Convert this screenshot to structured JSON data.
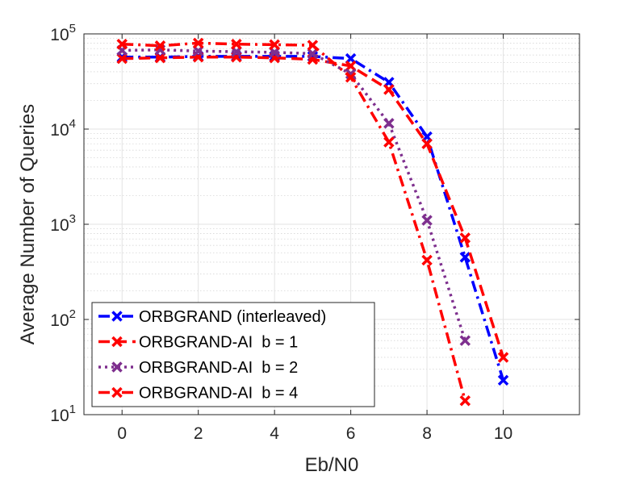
{
  "chart_data": {
    "type": "line",
    "title": "",
    "xlabel": "Eb/N0",
    "ylabel": "Average Number of Queries",
    "xlim": [
      -1,
      12
    ],
    "ylim": [
      10,
      100000
    ],
    "yscale": "log",
    "grid": true,
    "minor_grid": true,
    "legend_position": "bottom-left",
    "x_ticks": [
      "0",
      "2",
      "4",
      "6",
      "8",
      "10"
    ],
    "y_ticks": [
      {
        "base": "10",
        "exp": "1"
      },
      {
        "base": "10",
        "exp": "2"
      },
      {
        "base": "10",
        "exp": "3"
      },
      {
        "base": "10",
        "exp": "4"
      },
      {
        "base": "10",
        "exp": "5"
      }
    ],
    "series": [
      {
        "name": "ORBGRAND (interleaved)",
        "color": "#0000ff",
        "line_style": "dashdot",
        "marker": "x",
        "x": [
          0,
          1,
          2,
          3,
          4,
          5,
          6,
          7,
          8,
          9,
          10
        ],
        "y": [
          57000,
          57000,
          58000,
          58000,
          58000,
          58000,
          55000,
          31000,
          8300,
          450,
          23
        ]
      },
      {
        "name": "ORBGRAND-AI  b = 1",
        "color": "#ff0000",
        "line_style": "dashed",
        "marker": "x",
        "x": [
          0,
          1,
          2,
          3,
          4,
          5,
          6,
          7,
          8,
          9,
          10
        ],
        "y": [
          55000,
          56000,
          57000,
          57000,
          56000,
          54000,
          46000,
          26000,
          7000,
          720,
          40
        ]
      },
      {
        "name": "ORBGRAND-AI  b = 2",
        "color": "#7e2f8e",
        "line_style": "dotted",
        "marker": "x",
        "x": [
          0,
          1,
          2,
          3,
          4,
          5,
          6,
          7,
          8,
          9
        ],
        "y": [
          67000,
          68000,
          66000,
          65000,
          64000,
          62000,
          38000,
          11500,
          1100,
          60
        ]
      },
      {
        "name": "ORBGRAND-AI  b = 4",
        "color": "#ff0000",
        "line_style": "dashdot",
        "marker": "x",
        "x": [
          0,
          1,
          2,
          3,
          4,
          5,
          6,
          7,
          8,
          9
        ],
        "y": [
          78000,
          75000,
          80000,
          78000,
          77000,
          76000,
          35000,
          7300,
          420,
          14
        ]
      }
    ]
  }
}
